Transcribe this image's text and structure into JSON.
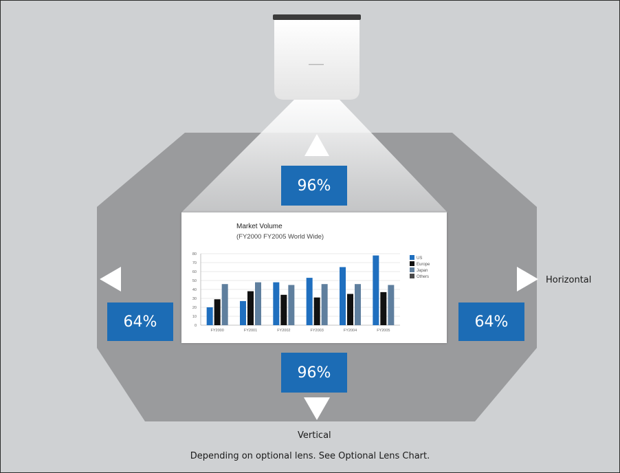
{
  "horizontal": {
    "label": "Horizontal",
    "left_value": "64%",
    "right_value": "64%"
  },
  "vertical": {
    "label": "Vertical",
    "top_value": "96%",
    "bottom_value": "96%"
  },
  "footnote": "Depending on optional lens. See Optional Lens Chart.",
  "colors": {
    "background": "#cfd1d3",
    "shift_area": "#9a9b9d",
    "value_box": "#1c6cb5",
    "arrow": "#ffffff"
  },
  "icons": [
    "projector-icon",
    "arrow-up-icon",
    "arrow-down-icon",
    "arrow-left-icon",
    "arrow-right-icon"
  ],
  "chart_data": {
    "type": "bar",
    "title": "Market Volume",
    "subtitle": "(FY2000 FY2005 World Wide)",
    "categories": [
      "FY2000",
      "FY2001",
      "FY2002",
      "FY2003",
      "FY2004",
      "FY2005"
    ],
    "series": [
      {
        "name": "US",
        "color": "#1f6fbf",
        "values": [
          20,
          27,
          48,
          53,
          65,
          78
        ]
      },
      {
        "name": "Europe",
        "color": "#111111",
        "values": [
          29,
          38,
          34,
          31,
          35,
          37
        ]
      },
      {
        "name": "Japan",
        "color": "#5f7f9e",
        "values": [
          46,
          48,
          45,
          46,
          46,
          45
        ]
      },
      {
        "name": "Others",
        "color": "#4a4a4a",
        "values": [
          0,
          0,
          0,
          0,
          0,
          0
        ]
      }
    ],
    "yticks": [
      "0",
      "10",
      "20",
      "30",
      "40",
      "50",
      "60",
      "70",
      "80"
    ],
    "ylim": [
      0,
      80
    ],
    "grid": true,
    "legend": "right"
  }
}
